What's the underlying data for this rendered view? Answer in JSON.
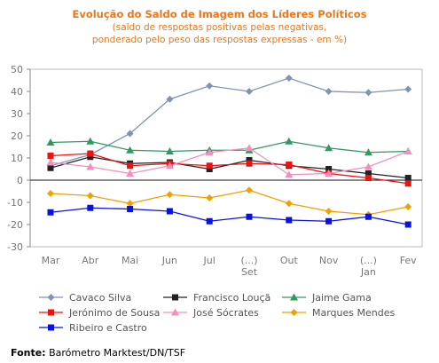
{
  "header": {
    "title": "Evolução do Saldo  de Imagem dos Líderes Políticos",
    "subtitle_line1": "(saldo de respostas positivas pelas negativas,",
    "subtitle_line2": "ponderado pelo peso das respostas expressas - em %)"
  },
  "footer": {
    "source_label": "Fonte:",
    "source_text": " Barómetro Marktest/DN/TSF"
  },
  "chart_data": {
    "type": "line",
    "categories": [
      "Mar",
      "Abr",
      "Mai",
      "Jun",
      "Jul",
      "(...)\nSet",
      "Out",
      "Nov",
      "(...)\nJan",
      "Fev"
    ],
    "ylim": [
      -30,
      50
    ],
    "yticks": [
      -30,
      -20,
      -10,
      0,
      10,
      20,
      30,
      40,
      50
    ],
    "grid": false,
    "legend_position": "bottom",
    "series": [
      {
        "name": "Cavaco Silva",
        "color": "#7f93b3",
        "marker": "diamond",
        "values": [
          6.5,
          11.5,
          21,
          36.5,
          42.5,
          40,
          46,
          40,
          39.5,
          41
        ]
      },
      {
        "name": "Francisco Louçã",
        "color": "#222222",
        "marker": "square",
        "values": [
          5.5,
          10.5,
          7.5,
          8,
          5,
          9,
          6.5,
          5,
          3,
          1
        ]
      },
      {
        "name": "Jaime Gama",
        "color": "#2e9a62",
        "marker": "triangle",
        "values": [
          17,
          17.5,
          13.5,
          13,
          13.5,
          13.5,
          17.5,
          14.5,
          12.5,
          13
        ]
      },
      {
        "name": "Jerónimo de Sousa",
        "color": "#ee1111",
        "marker": "square",
        "values": [
          11,
          12,
          6.5,
          7.5,
          6.5,
          7.5,
          7,
          3,
          1,
          -1.5
        ]
      },
      {
        "name": "José Sócrates",
        "color": "#f28fbf",
        "marker": "triangle",
        "values": [
          8,
          6,
          3,
          6.5,
          12.5,
          14.5,
          2.5,
          3,
          6,
          13
        ]
      },
      {
        "name": "Marques Mendes",
        "color": "#f0a000",
        "marker": "diamond",
        "values": [
          -6,
          -7,
          -10.5,
          -6.5,
          -8,
          -4.5,
          -10.5,
          -14,
          -15.5,
          -12
        ]
      },
      {
        "name": "Ribeiro e Castro",
        "color": "#0a12dd",
        "marker": "square",
        "values": [
          -14.5,
          -12.5,
          -13,
          -14,
          -18.5,
          -16.5,
          -18,
          -18.5,
          -16.5,
          -20
        ]
      }
    ]
  }
}
